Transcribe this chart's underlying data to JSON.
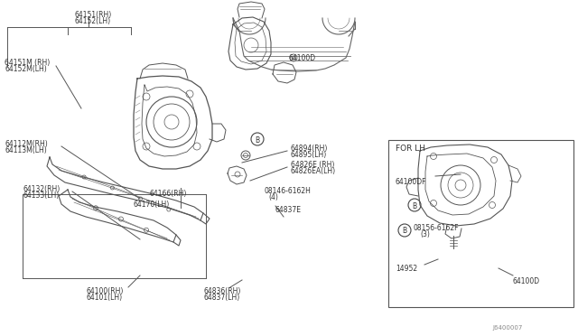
{
  "bg_color": "#ffffff",
  "watermark": "J6400007",
  "lc": "#555555",
  "labels": {
    "64151": "64151(RH)",
    "64152": "64152(LH)",
    "64151M": "64151M (RH)",
    "64152M": "64152M(LH)",
    "64112M": "64112M(RH)",
    "64113M": "64113M(LH)",
    "64132": "64132(RH)",
    "64133": "64133(LH)",
    "64166": "64166(RH)",
    "64170": "64170(LH)",
    "64100": "64100(RH)",
    "64101": "64101(LH)",
    "64836": "64836(RH)",
    "64837": "64837(LH)",
    "64100D": "64100D",
    "64894": "64894(RH)",
    "64895": "64895(LH)",
    "64826E": "64826E (RH)",
    "64826EA": "64826EA(LH)",
    "bolt1": "08146-6162H",
    "bolt1b": "(4)",
    "64837E": "64837E",
    "for_lh": "FOR LH",
    "64100DF": "64100DF",
    "bolt2": "08156-6162F",
    "bolt2b": "(3)",
    "14952": "14952",
    "64100Di": "64100D"
  }
}
